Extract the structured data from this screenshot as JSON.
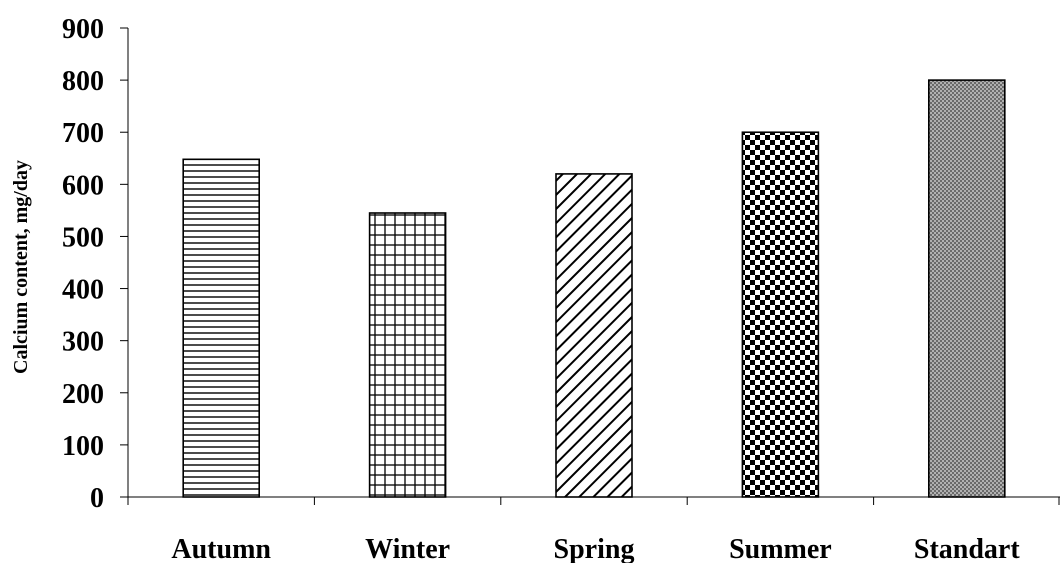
{
  "chart_data": {
    "type": "bar",
    "categories": [
      "Autumn",
      "Winter",
      "Spring",
      "Summer",
      "Standart"
    ],
    "values": [
      648,
      545,
      620,
      700,
      800
    ],
    "ylabel": "Calcium content, mg/day",
    "xlabel": "",
    "title": "",
    "ylim": [
      0,
      900
    ],
    "yticks": [
      0,
      100,
      200,
      300,
      400,
      500,
      600,
      700,
      800,
      900
    ],
    "grid": false,
    "legend": "none",
    "patterns": [
      "horizontal-lines",
      "grid",
      "diagonal-lines",
      "checkerboard",
      "fine-crosshatch"
    ],
    "colors": {
      "bar_fill": "#ffffff",
      "bar_pattern": "#000000",
      "axis": "#000000",
      "background": "#ffffff"
    }
  }
}
